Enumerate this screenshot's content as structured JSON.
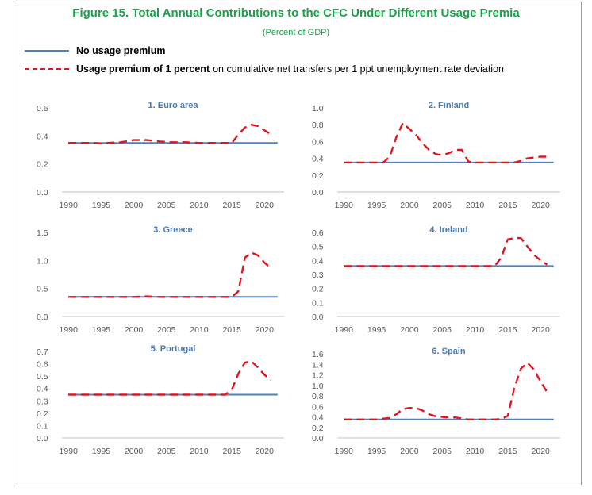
{
  "figure": {
    "title": "Figure 15. Total Annual Contributions to the CFC Under Different Usage Premia",
    "subtitle": "(Percent of GDP)"
  },
  "legend": {
    "base_label": "No usage premium",
    "premium_label_bold": "Usage premium of 1 percent",
    "premium_label_rest": "on cumulative net transfers per 1 ppt unemployment rate deviation"
  },
  "colors": {
    "base": "#4f81bd",
    "premium": "#e0161e",
    "title": "#1aa14a",
    "panel_title": "#4a7ab0"
  },
  "chart_data": [
    {
      "type": "line",
      "title": "1. Euro area",
      "x_ticks": [
        1990,
        1995,
        2000,
        2005,
        2010,
        2015,
        2020
      ],
      "y_ticks": [
        "0.0",
        "0.2",
        "0.4",
        "0.6"
      ],
      "ylim": [
        0,
        0.6
      ],
      "xlim": [
        1989,
        2023
      ],
      "series": [
        {
          "name": "No usage premium",
          "x": [
            1990,
            2022
          ],
          "y": [
            0.35,
            0.35
          ]
        },
        {
          "name": "Usage premium of 1 percent",
          "x": [
            1990,
            1992,
            1994,
            1995,
            1996,
            1998,
            2000,
            2002,
            2004,
            2006,
            2008,
            2010,
            2012,
            2014,
            2015,
            2016,
            2017,
            2018,
            2019,
            2020,
            2021
          ],
          "y": [
            0.35,
            0.35,
            0.35,
            0.345,
            0.35,
            0.355,
            0.37,
            0.37,
            0.36,
            0.355,
            0.355,
            0.35,
            0.35,
            0.35,
            0.35,
            0.41,
            0.46,
            0.48,
            0.47,
            0.44,
            0.41
          ]
        }
      ]
    },
    {
      "type": "line",
      "title": "2. Finland",
      "x_ticks": [
        1990,
        1995,
        2000,
        2005,
        2010,
        2015,
        2020
      ],
      "y_ticks": [
        "0.0",
        "0.2",
        "0.4",
        "0.6",
        "0.8",
        "1.0"
      ],
      "ylim": [
        0,
        1.0
      ],
      "xlim": [
        1989,
        2023
      ],
      "series": [
        {
          "name": "No usage premium",
          "x": [
            1990,
            2022
          ],
          "y": [
            0.35,
            0.35
          ]
        },
        {
          "name": "Usage premium of 1 percent",
          "x": [
            1990,
            1993,
            1996,
            1997,
            1998,
            1999,
            2000,
            2001,
            2002,
            2003,
            2004,
            2005,
            2006,
            2007,
            2008,
            2009,
            2010,
            2013,
            2016,
            2017,
            2018,
            2019,
            2020,
            2021
          ],
          "y": [
            0.35,
            0.35,
            0.35,
            0.42,
            0.65,
            0.82,
            0.75,
            0.68,
            0.58,
            0.5,
            0.45,
            0.44,
            0.46,
            0.5,
            0.5,
            0.36,
            0.35,
            0.35,
            0.35,
            0.37,
            0.4,
            0.41,
            0.42,
            0.42
          ]
        }
      ]
    },
    {
      "type": "line",
      "title": "3. Greece",
      "x_ticks": [
        1990,
        1995,
        2000,
        2005,
        2010,
        2015,
        2020
      ],
      "y_ticks": [
        "0.0",
        "0.5",
        "1.0",
        "1.5"
      ],
      "ylim": [
        0,
        1.5
      ],
      "xlim": [
        1989,
        2023
      ],
      "series": [
        {
          "name": "No usage premium",
          "x": [
            1990,
            2022
          ],
          "y": [
            0.35,
            0.35
          ]
        },
        {
          "name": "Usage premium of 1 percent",
          "x": [
            1990,
            1995,
            2000,
            2002,
            2004,
            2010,
            2014,
            2015,
            2016,
            2017,
            2018,
            2019,
            2020,
            2021
          ],
          "y": [
            0.35,
            0.35,
            0.35,
            0.36,
            0.35,
            0.35,
            0.35,
            0.35,
            0.45,
            1.05,
            1.14,
            1.09,
            0.96,
            0.86
          ]
        }
      ]
    },
    {
      "type": "line",
      "title": "4. Ireland",
      "x_ticks": [
        1990,
        1995,
        2000,
        2005,
        2010,
        2015,
        2020
      ],
      "y_ticks": [
        "0.0",
        "0.1",
        "0.2",
        "0.3",
        "0.4",
        "0.5",
        "0.6"
      ],
      "ylim": [
        0,
        0.6
      ],
      "xlim": [
        1989,
        2023
      ],
      "series": [
        {
          "name": "No usage premium",
          "x": [
            1990,
            2022
          ],
          "y": [
            0.36,
            0.36
          ]
        },
        {
          "name": "Usage premium of 1 percent",
          "x": [
            1990,
            1995,
            2000,
            2005,
            2010,
            2012,
            2013,
            2014,
            2015,
            2016,
            2017,
            2018,
            2019,
            2020,
            2021
          ],
          "y": [
            0.36,
            0.36,
            0.36,
            0.36,
            0.36,
            0.36,
            0.36,
            0.42,
            0.55,
            0.56,
            0.56,
            0.5,
            0.44,
            0.4,
            0.37
          ]
        }
      ]
    },
    {
      "type": "line",
      "title": "5. Portugal",
      "x_ticks": [
        1990,
        1995,
        2000,
        2005,
        2010,
        2015,
        2020
      ],
      "y_ticks": [
        "0.0",
        "0.1",
        "0.2",
        "0.3",
        "0.4",
        "0.5",
        "0.6",
        "0.7"
      ],
      "ylim": [
        0,
        0.7
      ],
      "xlim": [
        1989,
        2023
      ],
      "series": [
        {
          "name": "No usage premium",
          "x": [
            1990,
            2022
          ],
          "y": [
            0.35,
            0.35
          ]
        },
        {
          "name": "Usage premium of 1 percent",
          "x": [
            1990,
            1995,
            2000,
            2005,
            2010,
            2014,
            2015,
            2016,
            2017,
            2018,
            2019,
            2020,
            2021
          ],
          "y": [
            0.35,
            0.35,
            0.35,
            0.35,
            0.35,
            0.35,
            0.39,
            0.52,
            0.61,
            0.62,
            0.57,
            0.51,
            0.47
          ]
        }
      ]
    },
    {
      "type": "line",
      "title": "6. Spain",
      "x_ticks": [
        1990,
        1995,
        2000,
        2005,
        2010,
        2015,
        2020
      ],
      "y_ticks": [
        "0.0",
        "0.2",
        "0.4",
        "0.6",
        "0.8",
        "1.0",
        "1.2",
        "1.4",
        "1.6"
      ],
      "ylim": [
        0,
        1.6
      ],
      "xlim": [
        1989,
        2023
      ],
      "series": [
        {
          "name": "No usage premium",
          "x": [
            1990,
            2022
          ],
          "y": [
            0.35,
            0.35
          ]
        },
        {
          "name": "Usage premium of 1 percent",
          "x": [
            1990,
            1995,
            1997,
            1998,
            1999,
            2000,
            2001,
            2002,
            2003,
            2004,
            2005,
            2006,
            2007,
            2008,
            2009,
            2010,
            2013,
            2014,
            2015,
            2016,
            2017,
            2018,
            2019,
            2020,
            2021
          ],
          "y": [
            0.35,
            0.35,
            0.38,
            0.45,
            0.55,
            0.57,
            0.57,
            0.52,
            0.45,
            0.41,
            0.4,
            0.39,
            0.39,
            0.37,
            0.35,
            0.35,
            0.35,
            0.36,
            0.42,
            0.95,
            1.32,
            1.43,
            1.3,
            1.07,
            0.87
          ]
        }
      ]
    }
  ]
}
